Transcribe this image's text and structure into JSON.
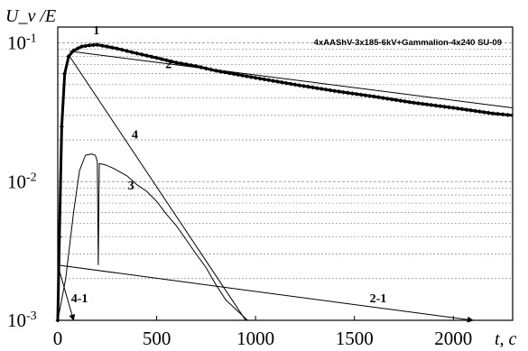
{
  "chart_data": {
    "type": "line",
    "title": "4xAAShV-3x185-6kV+Gammalion-4x240 SU-09",
    "ylabel": "U_v /E",
    "xlabel": "t, c",
    "xlim": [
      0,
      2300
    ],
    "ylim": [
      0.001,
      0.13
    ],
    "y_scale": "log",
    "grid": "y-minor-dashed",
    "x_ticks": [
      "0",
      "500",
      "1000",
      "1500",
      "2000"
    ],
    "y_ticks": [
      {
        "base": "10",
        "exp": "-1",
        "value": 0.1
      },
      {
        "base": "10",
        "exp": "-2",
        "value": 0.01
      },
      {
        "base": "10",
        "exp": "-3",
        "value": 0.001
      }
    ],
    "series": [
      {
        "name": "1",
        "style": "thick-marked",
        "points": [
          [
            0,
            0.001
          ],
          [
            8,
            0.004
          ],
          [
            20,
            0.025
          ],
          [
            35,
            0.06
          ],
          [
            55,
            0.08
          ],
          [
            80,
            0.088
          ],
          [
            120,
            0.094
          ],
          [
            160,
            0.096
          ],
          [
            200,
            0.097
          ],
          [
            250,
            0.094
          ],
          [
            300,
            0.091
          ],
          [
            400,
            0.084
          ],
          [
            500,
            0.078
          ],
          [
            600,
            0.072
          ],
          [
            700,
            0.068
          ],
          [
            800,
            0.063
          ],
          [
            1000,
            0.056
          ],
          [
            1200,
            0.05
          ],
          [
            1400,
            0.045
          ],
          [
            1600,
            0.041
          ],
          [
            1800,
            0.037
          ],
          [
            2000,
            0.034
          ],
          [
            2200,
            0.031
          ],
          [
            2300,
            0.03
          ]
        ]
      },
      {
        "name": "2",
        "style": "thin",
        "points": [
          [
            60,
            0.087
          ],
          [
            2300,
            0.034
          ]
        ]
      },
      {
        "name": "3",
        "style": "thin",
        "points": [
          [
            0,
            0.001
          ],
          [
            40,
            0.002
          ],
          [
            80,
            0.006
          ],
          [
            110,
            0.012
          ],
          [
            140,
            0.0155
          ],
          [
            170,
            0.0158
          ],
          [
            190,
            0.0155
          ],
          [
            200,
            0.014
          ],
          [
            205,
            0.0025
          ],
          [
            210,
            0.0135
          ],
          [
            240,
            0.0132
          ],
          [
            280,
            0.0125
          ],
          [
            350,
            0.011
          ],
          [
            400,
            0.0095
          ],
          [
            450,
            0.0085
          ],
          [
            500,
            0.0072
          ],
          [
            550,
            0.0058
          ],
          [
            600,
            0.0048
          ],
          [
            650,
            0.0038
          ],
          [
            700,
            0.003
          ],
          [
            750,
            0.0024
          ],
          [
            800,
            0.0018
          ],
          [
            850,
            0.0014
          ],
          [
            900,
            0.0012
          ],
          [
            960,
            0.001
          ]
        ]
      },
      {
        "name": "4",
        "style": "thin",
        "points": [
          [
            60,
            0.08
          ],
          [
            950,
            0.001
          ]
        ]
      },
      {
        "name": "4-1",
        "style": "thin-arrow",
        "points": [
          [
            0,
            0.0025
          ],
          [
            80,
            0.001
          ]
        ]
      },
      {
        "name": "2-1",
        "style": "thin-arrow",
        "points": [
          [
            0,
            0.0025
          ],
          [
            2100,
            0.001
          ]
        ]
      }
    ],
    "annotations": [
      {
        "text": "1",
        "x": 195,
        "y": 0.115
      },
      {
        "text": "2",
        "x": 560,
        "y": 0.066
      },
      {
        "text": "3",
        "x": 370,
        "y": 0.0088
      },
      {
        "text": "4",
        "x": 390,
        "y": 0.0205
      },
      {
        "text": "4-1",
        "x": 110,
        "y": 0.00135
      },
      {
        "text": "2-1",
        "x": 1620,
        "y": 0.00135
      }
    ]
  }
}
